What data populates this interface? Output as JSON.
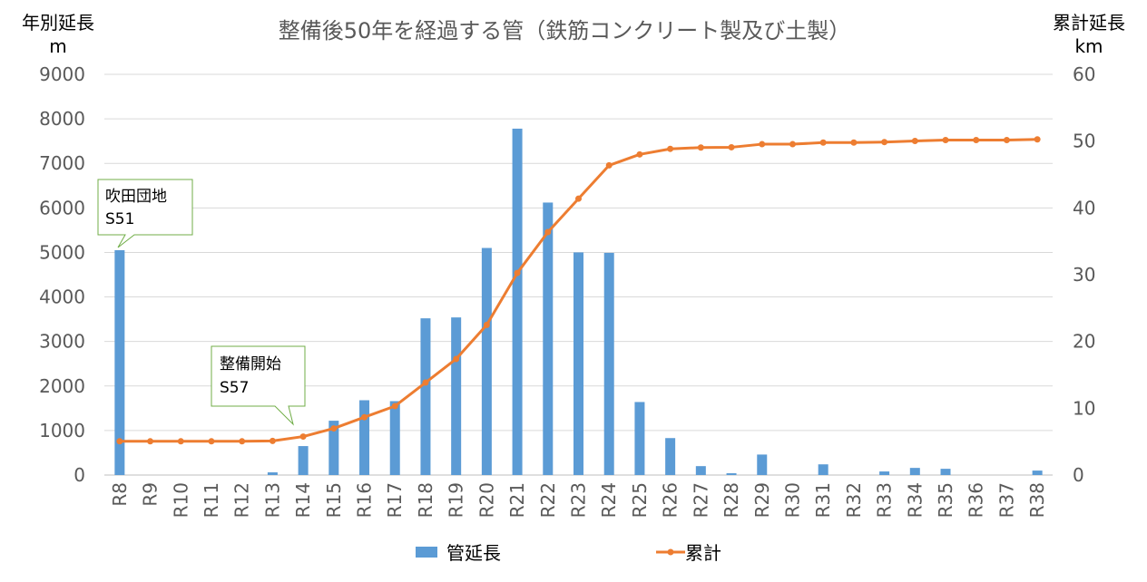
{
  "chart_data": {
    "type": "bar",
    "title": "整備後50年を経過する管（鉄筋コンクリート製及び土製）",
    "y_left": {
      "label_line1": "年別延長",
      "label_line2": "m",
      "range": [
        0,
        9000
      ],
      "step": 1000
    },
    "y_right": {
      "label_line1": "累計延長",
      "label_line2": "km",
      "range": [
        0,
        60
      ],
      "step": 10
    },
    "categories": [
      "R8",
      "R9",
      "R10",
      "R11",
      "R12",
      "R13",
      "R14",
      "R15",
      "R16",
      "R17",
      "R18",
      "R19",
      "R20",
      "R21",
      "R22",
      "R23",
      "R24",
      "R25",
      "R26",
      "R27",
      "R28",
      "R29",
      "R30",
      "R31",
      "R32",
      "R33",
      "R34",
      "R35",
      "R36",
      "R37",
      "R38"
    ],
    "grid": true,
    "legend_position": "bottom",
    "series": [
      {
        "name": "管延長",
        "type": "bar",
        "axis": "left",
        "color": "#5b9bd5",
        "values": [
          5050,
          0,
          0,
          0,
          0,
          60,
          650,
          1220,
          1680,
          1660,
          3520,
          3540,
          5100,
          7780,
          6120,
          5000,
          4990,
          1640,
          830,
          200,
          40,
          460,
          0,
          240,
          0,
          80,
          160,
          140,
          0,
          0,
          100
        ]
      },
      {
        "name": "累計",
        "type": "line",
        "axis": "right",
        "color": "#ed7d31",
        "values": [
          5.05,
          5.05,
          5.05,
          5.05,
          5.05,
          5.11,
          5.76,
          6.98,
          8.66,
          10.32,
          13.84,
          17.38,
          22.48,
          30.26,
          36.38,
          41.38,
          46.37,
          48.01,
          48.84,
          49.04,
          49.08,
          49.54,
          49.54,
          49.78,
          49.78,
          49.86,
          50.02,
          50.16,
          50.16,
          50.16,
          50.26
        ]
      }
    ],
    "annotations": [
      {
        "line1": "吹田団地",
        "line2": "S51",
        "target": "R8"
      },
      {
        "line1": "整備開始",
        "line2": "S57",
        "target": "R13"
      }
    ]
  }
}
